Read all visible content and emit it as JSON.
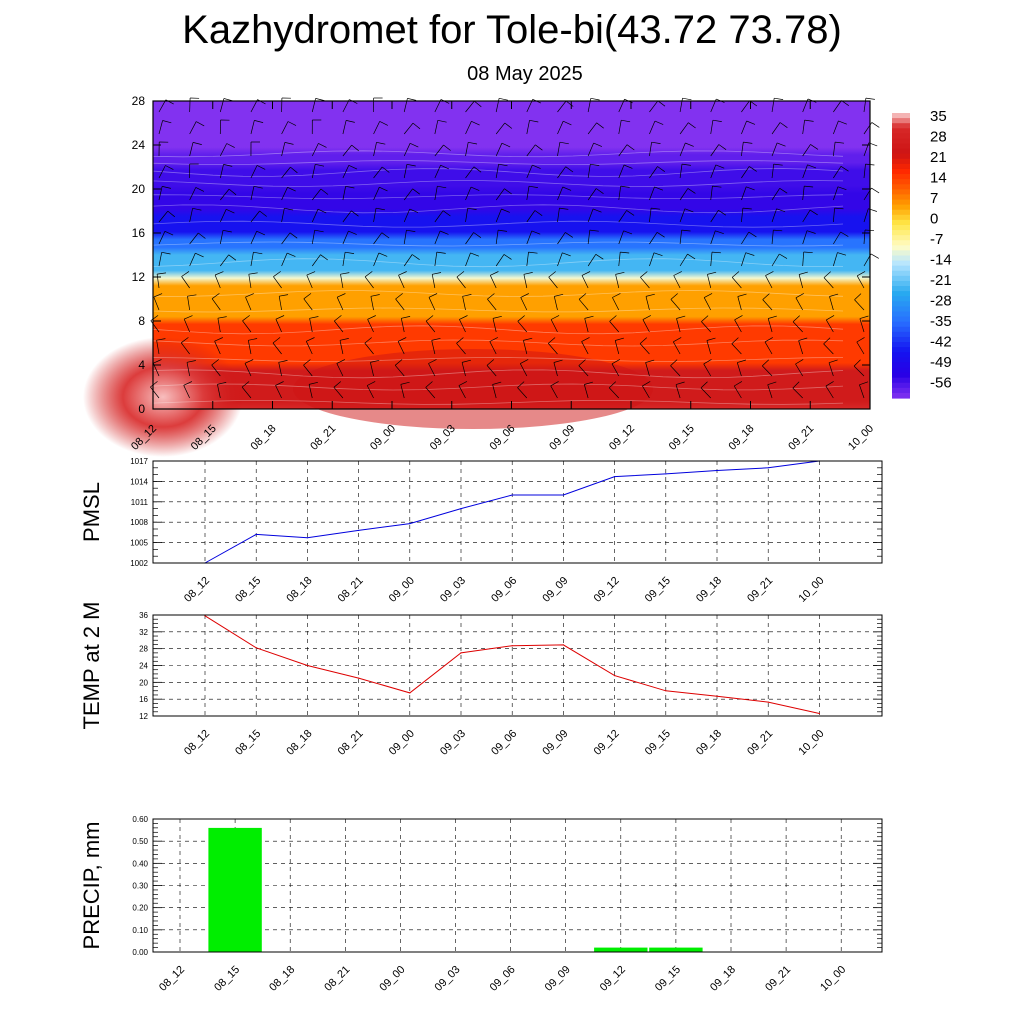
{
  "header": {
    "title": "Kazhydromet for Tole-bi(43.72 73.78)",
    "subtitle": "08 May 2025"
  },
  "chart_data": [
    {
      "type": "heatmap",
      "x": [
        "08_12",
        "08_15",
        "08_18",
        "08_21",
        "09_00",
        "09_03",
        "09_06",
        "09_09",
        "09_12",
        "09_15",
        "09_18",
        "09_21",
        "10_00"
      ],
      "y_ticks": [
        0,
        4,
        8,
        12,
        16,
        20,
        24,
        28
      ],
      "ylim": [
        0,
        28
      ],
      "colorbar": {
        "labels": [
          "35",
          "28",
          "21",
          "14",
          "7",
          "0",
          "-7",
          "-14",
          "-21",
          "-28",
          "-35",
          "-42",
          "-49",
          "-56"
        ],
        "range": [
          -60,
          38
        ]
      },
      "overlay": "wind barbs",
      "grid": false
    },
    {
      "type": "line",
      "ylabel": "PMSL",
      "x": [
        "08_12",
        "08_15",
        "08_18",
        "08_21",
        "09_00",
        "09_03",
        "09_06",
        "09_09",
        "09_12",
        "09_15",
        "09_18",
        "09_21",
        "10_00"
      ],
      "values": [
        1002.0,
        1006.2,
        1005.7,
        1006.8,
        1007.8,
        1010.0,
        1012.0,
        1012.0,
        1014.7,
        1015.1,
        1015.6,
        1016.0,
        1017.0
      ],
      "y_ticks": [
        1002,
        1005,
        1008,
        1011,
        1014,
        1017
      ],
      "ylim": [
        1002,
        1017
      ],
      "color": "#0000dd",
      "grid": true
    },
    {
      "type": "line",
      "ylabel": "TEMP at 2 M",
      "x": [
        "08_12",
        "08_15",
        "08_18",
        "08_21",
        "09_00",
        "09_03",
        "09_06",
        "09_09",
        "09_12",
        "09_15",
        "09_18",
        "09_21",
        "10_00"
      ],
      "values": [
        35.8,
        28.2,
        24.0,
        21.0,
        17.5,
        27.0,
        28.7,
        28.9,
        21.6,
        18.0,
        16.7,
        15.3,
        12.6
      ],
      "y_ticks": [
        12,
        16,
        20,
        24,
        28,
        32,
        36
      ],
      "ylim": [
        12,
        36
      ],
      "color": "#dd0000",
      "grid": true
    },
    {
      "type": "bar",
      "ylabel": "PRECIP, mm",
      "categories": [
        "08_12",
        "08_15",
        "08_18",
        "08_21",
        "09_00",
        "09_03",
        "09_06",
        "09_09",
        "09_12",
        "09_15",
        "09_18",
        "09_21",
        "10_00"
      ],
      "values": [
        0.0,
        0.56,
        0.0,
        0.0,
        0.0,
        0.0,
        0.0,
        0.0,
        0.02,
        0.02,
        0.0,
        0.0,
        0.0
      ],
      "y_ticks": [
        "0.00",
        "0.10",
        "0.20",
        "0.30",
        "0.40",
        "0.50",
        "0.60"
      ],
      "ylim": [
        0,
        0.6
      ],
      "color": "#00ee00",
      "grid": true
    }
  ]
}
